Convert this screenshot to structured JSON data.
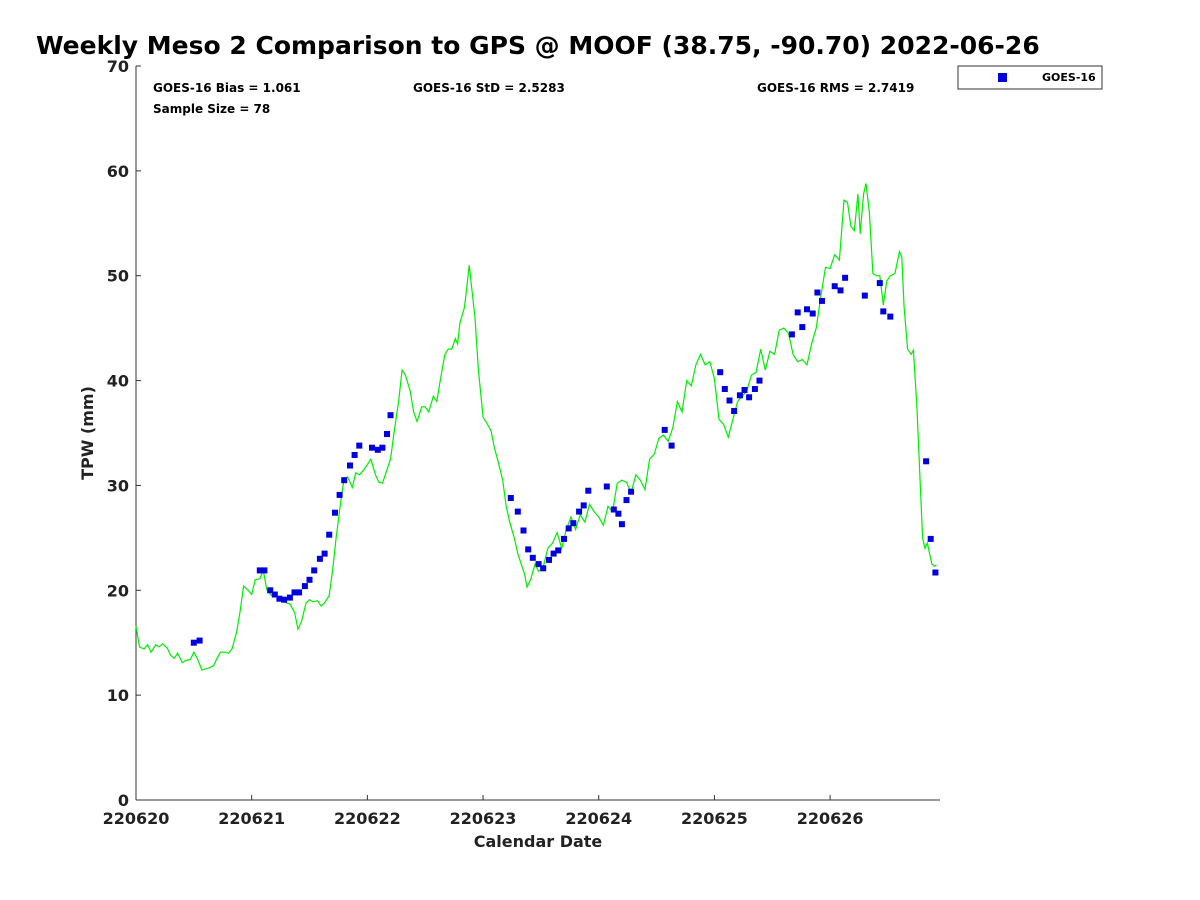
{
  "chart_data": {
    "type": "scatter",
    "title": "Weekly Meso 2 Comparison to GPS @ MOOF (38.75, -90.70) 2022-06-26",
    "xlabel": "Calendar Date",
    "ylabel": "TPW (mm)",
    "xlim": [
      0,
      6.95
    ],
    "ylim": [
      0,
      70
    ],
    "x_ticks": [
      {
        "value": 0,
        "label": "220620"
      },
      {
        "value": 1,
        "label": "220621"
      },
      {
        "value": 2,
        "label": "220622"
      },
      {
        "value": 3,
        "label": "220623"
      },
      {
        "value": 4,
        "label": "220624"
      },
      {
        "value": 5,
        "label": "220625"
      },
      {
        "value": 6,
        "label": "220626"
      }
    ],
    "y_ticks": [
      0,
      10,
      20,
      30,
      40,
      50,
      60,
      70
    ],
    "grid": false,
    "legend_position": "outside-top-right",
    "stats": {
      "bias": "GOES-16 Bias = 1.061",
      "std": "GOES-16 StD = 2.5283",
      "rms": "GOES-16 RMS = 2.7419",
      "sample": "Sample Size = 78"
    },
    "series": [
      {
        "name": "GOES-16",
        "kind": "scatter",
        "color": "#0000dd",
        "points": [
          [
            0.5,
            15.0
          ],
          [
            0.55,
            15.2
          ],
          [
            1.07,
            21.9
          ],
          [
            1.11,
            21.9
          ],
          [
            1.16,
            20.0
          ],
          [
            1.2,
            19.6
          ],
          [
            1.24,
            19.2
          ],
          [
            1.28,
            19.1
          ],
          [
            1.33,
            19.3
          ],
          [
            1.37,
            19.8
          ],
          [
            1.41,
            19.8
          ],
          [
            1.46,
            20.4
          ],
          [
            1.5,
            21.0
          ],
          [
            1.54,
            21.9
          ],
          [
            1.59,
            23.0
          ],
          [
            1.63,
            23.5
          ],
          [
            1.67,
            25.3
          ],
          [
            1.72,
            27.4
          ],
          [
            1.76,
            29.1
          ],
          [
            1.8,
            30.5
          ],
          [
            1.85,
            31.9
          ],
          [
            1.89,
            32.9
          ],
          [
            1.93,
            33.8
          ],
          [
            2.04,
            33.6
          ],
          [
            2.09,
            33.4
          ],
          [
            2.13,
            33.6
          ],
          [
            2.17,
            34.9
          ],
          [
            2.2,
            36.7
          ],
          [
            3.24,
            28.8
          ],
          [
            3.3,
            27.5
          ],
          [
            3.35,
            25.7
          ],
          [
            3.39,
            23.9
          ],
          [
            3.43,
            23.1
          ],
          [
            3.48,
            22.5
          ],
          [
            3.52,
            22.1
          ],
          [
            3.57,
            22.9
          ],
          [
            3.61,
            23.5
          ],
          [
            3.65,
            23.8
          ],
          [
            3.7,
            24.9
          ],
          [
            3.74,
            25.9
          ],
          [
            3.78,
            26.4
          ],
          [
            3.83,
            27.5
          ],
          [
            3.87,
            28.1
          ],
          [
            3.91,
            29.5
          ],
          [
            4.07,
            29.9
          ],
          [
            4.13,
            27.7
          ],
          [
            4.17,
            27.3
          ],
          [
            4.2,
            26.3
          ],
          [
            4.24,
            28.6
          ],
          [
            4.28,
            29.4
          ],
          [
            4.57,
            35.3
          ],
          [
            4.63,
            33.8
          ],
          [
            5.05,
            40.8
          ],
          [
            5.09,
            39.2
          ],
          [
            5.13,
            38.1
          ],
          [
            5.17,
            37.1
          ],
          [
            5.22,
            38.6
          ],
          [
            5.26,
            39.1
          ],
          [
            5.3,
            38.4
          ],
          [
            5.35,
            39.2
          ],
          [
            5.39,
            40.0
          ],
          [
            5.67,
            44.4
          ],
          [
            5.72,
            46.5
          ],
          [
            5.76,
            45.1
          ],
          [
            5.8,
            46.8
          ],
          [
            5.85,
            46.4
          ],
          [
            5.89,
            48.4
          ],
          [
            5.93,
            47.6
          ],
          [
            6.04,
            49.0
          ],
          [
            6.09,
            48.6
          ],
          [
            6.13,
            49.8
          ],
          [
            6.3,
            48.1
          ],
          [
            6.43,
            49.3
          ],
          [
            6.46,
            46.6
          ],
          [
            6.52,
            46.1
          ],
          [
            6.83,
            32.3
          ],
          [
            6.87,
            24.9
          ],
          [
            6.91,
            21.7
          ]
        ]
      },
      {
        "kind": "line",
        "color": "#00ee00",
        "points": [
          [
            0.0,
            16.6
          ],
          [
            0.03,
            14.6
          ],
          [
            0.07,
            14.4
          ],
          [
            0.1,
            14.8
          ],
          [
            0.13,
            14.1
          ],
          [
            0.17,
            14.8
          ],
          [
            0.2,
            14.6
          ],
          [
            0.23,
            14.9
          ],
          [
            0.27,
            14.5
          ],
          [
            0.3,
            13.8
          ],
          [
            0.33,
            13.5
          ],
          [
            0.36,
            14.0
          ],
          [
            0.4,
            13.1
          ],
          [
            0.43,
            13.3
          ],
          [
            0.47,
            13.4
          ],
          [
            0.5,
            14.1
          ],
          [
            0.53,
            13.5
          ],
          [
            0.57,
            12.4
          ],
          [
            0.6,
            12.5
          ],
          [
            0.63,
            12.6
          ],
          [
            0.67,
            12.8
          ],
          [
            0.7,
            13.5
          ],
          [
            0.73,
            14.1
          ],
          [
            0.77,
            14.1
          ],
          [
            0.8,
            14.0
          ],
          [
            0.83,
            14.4
          ],
          [
            0.87,
            16.0
          ],
          [
            0.9,
            18.0
          ],
          [
            0.93,
            20.4
          ],
          [
            0.97,
            20.0
          ],
          [
            1.0,
            19.6
          ],
          [
            1.03,
            21.0
          ],
          [
            1.07,
            21.1
          ],
          [
            1.1,
            21.9
          ],
          [
            1.13,
            20.1
          ],
          [
            1.17,
            19.5
          ],
          [
            1.2,
            19.7
          ],
          [
            1.23,
            19.3
          ],
          [
            1.27,
            19.0
          ],
          [
            1.3,
            18.8
          ],
          [
            1.33,
            18.7
          ],
          [
            1.37,
            17.9
          ],
          [
            1.4,
            16.3
          ],
          [
            1.43,
            17.0
          ],
          [
            1.47,
            18.8
          ],
          [
            1.5,
            19.1
          ],
          [
            1.53,
            18.9
          ],
          [
            1.57,
            19.0
          ],
          [
            1.6,
            18.5
          ],
          [
            1.63,
            18.8
          ],
          [
            1.67,
            19.5
          ],
          [
            1.7,
            22.0
          ],
          [
            1.73,
            25.0
          ],
          [
            1.77,
            28.5
          ],
          [
            1.8,
            30.7
          ],
          [
            1.83,
            30.8
          ],
          [
            1.87,
            29.8
          ],
          [
            1.9,
            31.2
          ],
          [
            1.93,
            31.0
          ],
          [
            1.97,
            31.5
          ],
          [
            2.0,
            32.0
          ],
          [
            2.03,
            32.5
          ],
          [
            2.07,
            31.0
          ],
          [
            2.1,
            30.3
          ],
          [
            2.13,
            30.2
          ],
          [
            2.17,
            31.5
          ],
          [
            2.2,
            32.5
          ],
          [
            2.23,
            35.0
          ],
          [
            2.27,
            38.0
          ],
          [
            2.3,
            41.0
          ],
          [
            2.33,
            40.5
          ],
          [
            2.37,
            39.0
          ],
          [
            2.4,
            37.0
          ],
          [
            2.43,
            36.1
          ],
          [
            2.47,
            37.5
          ],
          [
            2.5,
            37.5
          ],
          [
            2.53,
            37.0
          ],
          [
            2.57,
            38.5
          ],
          [
            2.6,
            38.0
          ],
          [
            2.63,
            40.0
          ],
          [
            2.67,
            42.5
          ],
          [
            2.7,
            43.0
          ],
          [
            2.73,
            43.0
          ],
          [
            2.76,
            44.0
          ],
          [
            2.78,
            43.5
          ],
          [
            2.8,
            45.5
          ],
          [
            2.84,
            47.0
          ],
          [
            2.86,
            49.0
          ],
          [
            2.88,
            51.0
          ],
          [
            2.9,
            49.0
          ],
          [
            2.93,
            46.0
          ],
          [
            2.96,
            41.0
          ],
          [
            3.0,
            36.5
          ],
          [
            3.03,
            36.0
          ],
          [
            3.07,
            35.2
          ],
          [
            3.1,
            33.5
          ],
          [
            3.13,
            32.3
          ],
          [
            3.17,
            30.5
          ],
          [
            3.2,
            28.0
          ],
          [
            3.23,
            26.5
          ],
          [
            3.27,
            25.0
          ],
          [
            3.3,
            23.5
          ],
          [
            3.33,
            22.5
          ],
          [
            3.36,
            21.5
          ],
          [
            3.38,
            20.3
          ],
          [
            3.41,
            21.0
          ],
          [
            3.45,
            22.5
          ],
          [
            3.48,
            21.8
          ],
          [
            3.52,
            22.2
          ],
          [
            3.56,
            24.0
          ],
          [
            3.6,
            24.5
          ],
          [
            3.64,
            25.5
          ],
          [
            3.68,
            24.0
          ],
          [
            3.72,
            25.8
          ],
          [
            3.76,
            27.0
          ],
          [
            3.8,
            25.8
          ],
          [
            3.84,
            27.2
          ],
          [
            3.88,
            26.5
          ],
          [
            3.92,
            28.2
          ],
          [
            3.96,
            27.5
          ],
          [
            4.0,
            27.0
          ],
          [
            4.04,
            26.2
          ],
          [
            4.08,
            28.0
          ],
          [
            4.12,
            27.5
          ],
          [
            4.16,
            30.2
          ],
          [
            4.2,
            30.5
          ],
          [
            4.24,
            30.3
          ],
          [
            4.28,
            29.3
          ],
          [
            4.32,
            31.0
          ],
          [
            4.36,
            30.5
          ],
          [
            4.4,
            29.6
          ],
          [
            4.44,
            32.5
          ],
          [
            4.48,
            33.0
          ],
          [
            4.52,
            34.5
          ],
          [
            4.56,
            34.8
          ],
          [
            4.6,
            34.2
          ],
          [
            4.64,
            35.5
          ],
          [
            4.68,
            38.0
          ],
          [
            4.72,
            37.0
          ],
          [
            4.76,
            40.0
          ],
          [
            4.8,
            39.5
          ],
          [
            4.84,
            41.5
          ],
          [
            4.88,
            42.5
          ],
          [
            4.92,
            41.5
          ],
          [
            4.96,
            41.8
          ],
          [
            5.0,
            40.2
          ],
          [
            5.04,
            36.3
          ],
          [
            5.08,
            35.8
          ],
          [
            5.12,
            34.6
          ],
          [
            5.16,
            36.3
          ],
          [
            5.2,
            38.0
          ],
          [
            5.24,
            38.5
          ],
          [
            5.28,
            39.0
          ],
          [
            5.32,
            40.5
          ],
          [
            5.36,
            40.8
          ],
          [
            5.4,
            43.0
          ],
          [
            5.44,
            41.0
          ],
          [
            5.48,
            42.8
          ],
          [
            5.52,
            42.5
          ],
          [
            5.56,
            44.8
          ],
          [
            5.6,
            45.0
          ],
          [
            5.64,
            44.5
          ],
          [
            5.68,
            42.5
          ],
          [
            5.72,
            41.8
          ],
          [
            5.76,
            42.0
          ],
          [
            5.8,
            41.5
          ],
          [
            5.84,
            43.5
          ],
          [
            5.88,
            45.0
          ],
          [
            5.92,
            48.0
          ],
          [
            5.96,
            50.8
          ],
          [
            6.0,
            50.7
          ],
          [
            6.04,
            52.0
          ],
          [
            6.08,
            51.5
          ],
          [
            6.12,
            57.2
          ],
          [
            6.15,
            57.0
          ],
          [
            6.18,
            54.7
          ],
          [
            6.21,
            54.3
          ],
          [
            6.24,
            57.8
          ],
          [
            6.26,
            54.0
          ],
          [
            6.29,
            57.8
          ],
          [
            6.31,
            58.8
          ],
          [
            6.34,
            56.0
          ],
          [
            6.37,
            50.2
          ],
          [
            6.4,
            50.0
          ],
          [
            6.43,
            50.0
          ],
          [
            6.46,
            47.2
          ],
          [
            6.49,
            49.5
          ],
          [
            6.52,
            50.0
          ],
          [
            6.56,
            50.2
          ],
          [
            6.6,
            52.3
          ],
          [
            6.62,
            51.8
          ],
          [
            6.64,
            47.0
          ],
          [
            6.67,
            43.0
          ],
          [
            6.7,
            42.5
          ],
          [
            6.72,
            42.9
          ],
          [
            6.75,
            37.5
          ],
          [
            6.78,
            30.0
          ],
          [
            6.8,
            25.0
          ],
          [
            6.82,
            24.0
          ],
          [
            6.84,
            24.5
          ],
          [
            6.86,
            23.5
          ],
          [
            6.88,
            22.5
          ],
          [
            6.9,
            22.3
          ],
          [
            6.92,
            22.4
          ]
        ]
      }
    ]
  }
}
